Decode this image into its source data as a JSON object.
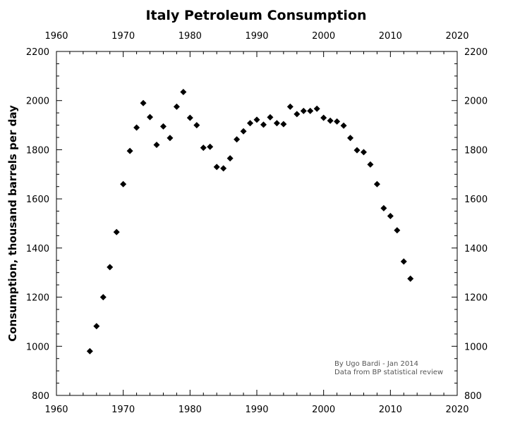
{
  "chart_data": {
    "type": "scatter",
    "title": "Italy Petroleum Consumption",
    "xlabel": "",
    "ylabel": "Consumption, thousand barrels per day",
    "xlim": [
      1960,
      2020
    ],
    "ylim": [
      800,
      2200
    ],
    "x_ticks": [
      1960,
      1970,
      1980,
      1990,
      2000,
      2010,
      2020
    ],
    "y_ticks": [
      800,
      1000,
      1200,
      1400,
      1600,
      1800,
      2000,
      2200
    ],
    "grid": false,
    "marker": "diamond",
    "marker_color": "#000000",
    "annotations": [
      "By Ugo Bardi - Jan 2014",
      "Data from BP statistical review"
    ],
    "series": [
      {
        "x": [
          1965,
          1966,
          1967,
          1968,
          1969,
          1970,
          1971,
          1972,
          1973,
          1974,
          1975,
          1976,
          1977,
          1978,
          1979,
          1980,
          1981,
          1982,
          1983,
          1984,
          1985,
          1986,
          1987,
          1988,
          1989,
          1990,
          1991,
          1992,
          1993,
          1994,
          1995,
          1996,
          1997,
          1998,
          1999,
          2000,
          2001,
          2002,
          2003,
          2004,
          2005,
          2006,
          2007,
          2008,
          2009,
          2010,
          2011,
          2012,
          2013
        ],
        "y": [
          980,
          1082,
          1200,
          1322,
          1465,
          1660,
          1795,
          1890,
          1990,
          1933,
          1820,
          1895,
          1848,
          1975,
          2035,
          1930,
          1900,
          1808,
          1812,
          1730,
          1724,
          1765,
          1842,
          1875,
          1908,
          1922,
          1902,
          1932,
          1908,
          1904,
          1975,
          1945,
          1958,
          1958,
          1967,
          1930,
          1918,
          1915,
          1898,
          1848,
          1798,
          1790,
          1740,
          1660,
          1562,
          1530,
          1472,
          1345,
          1275
        ]
      }
    ]
  }
}
